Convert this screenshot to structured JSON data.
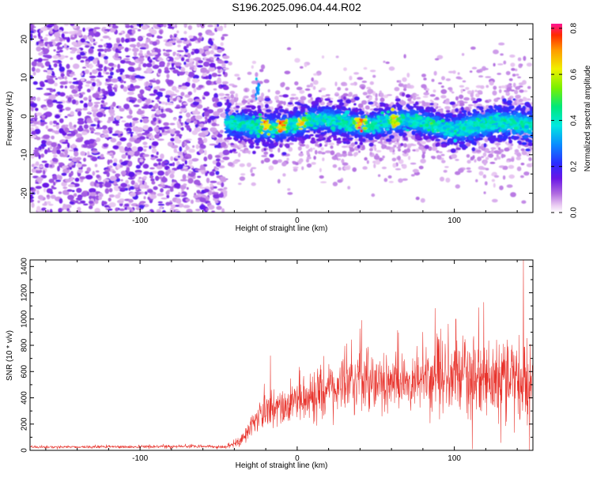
{
  "title": "S196.2025.096.04.44.R02",
  "chart_data": [
    {
      "type": "heatmap",
      "xlabel": "Height of straight line (km)",
      "ylabel": "Frequency (Hz)",
      "xlim": [
        -170,
        150
      ],
      "ylim": [
        -25,
        24
      ],
      "xticks": [
        -100,
        0,
        100
      ],
      "yticks": [
        -20,
        -10,
        0,
        10,
        20
      ],
      "colorbar": {
        "label": "Normalized spectral amplitude",
        "range": [
          0.0,
          0.82
        ],
        "ticks": [
          "0.0",
          "0.2",
          "0.4",
          "0.6",
          "0.8"
        ],
        "tick_values": [
          0.0,
          0.2,
          0.4,
          0.6,
          0.8
        ]
      },
      "band": {
        "onset_km": -45,
        "center_freq_hz": -2,
        "spread_hz": 4,
        "peak_amplitude": 0.82,
        "peaks": [
          {
            "x": -20,
            "f": -1.5,
            "a": 0.75
          },
          {
            "x": -10,
            "f": -2.0,
            "a": 0.8
          },
          {
            "x": 3,
            "f": -2.5,
            "a": 0.7
          },
          {
            "x": 40,
            "f": -3.0,
            "a": 0.82
          },
          {
            "x": 62,
            "f": -4.0,
            "a": 0.7
          },
          {
            "x": 85,
            "f": -2.5,
            "a": 0.55
          }
        ]
      }
    },
    {
      "type": "line",
      "xlabel": "Height of straight line (km)",
      "ylabel": "SNR (10 * v/v)",
      "xlim": [
        -170,
        150
      ],
      "ylim": [
        0,
        1450
      ],
      "xticks": [
        -100,
        0,
        100
      ],
      "yticks": [
        0,
        200,
        400,
        600,
        800,
        1000,
        1200,
        1400
      ],
      "series": [
        {
          "name": "SNR",
          "color": "#e8322b",
          "profile_x": [
            -170,
            -60,
            -45,
            -35,
            -25,
            -15,
            0,
            20,
            40,
            60,
            80,
            100,
            120,
            150
          ],
          "profile_mean": [
            25,
            30,
            25,
            80,
            260,
            320,
            360,
            480,
            550,
            540,
            560,
            580,
            560,
            520
          ],
          "profile_spread": [
            10,
            12,
            12,
            50,
            110,
            140,
            150,
            180,
            200,
            190,
            210,
            280,
            300,
            320
          ],
          "notable_spikes": [
            {
              "x": -17,
              "y": 720
            },
            {
              "x": 41,
              "y": 990
            },
            {
              "x": 101,
              "y": 1000
            },
            {
              "x": 144,
              "y": 1450
            }
          ]
        }
      ]
    }
  ]
}
